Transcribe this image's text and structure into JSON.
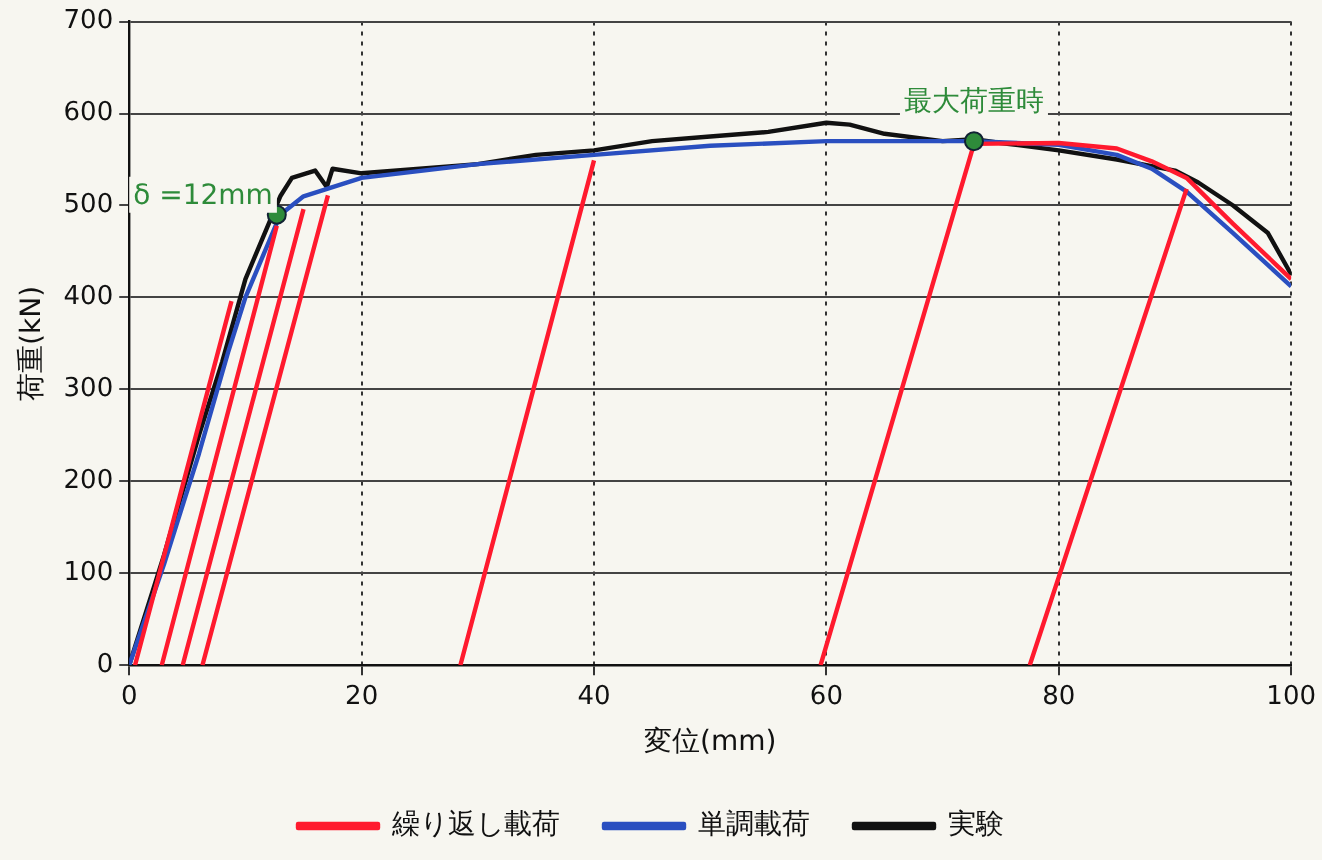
{
  "chart_data": {
    "type": "line",
    "xlabel": "変位(mm)",
    "ylabel": "荷重(kN)",
    "xlim": [
      0,
      100
    ],
    "xticks": [
      0,
      20,
      40,
      60,
      80,
      100
    ],
    "ylim": [
      0,
      700
    ],
    "yticks": [
      0,
      100,
      200,
      300,
      400,
      500,
      600,
      700
    ],
    "grid": true,
    "legend": "bottom",
    "marker": "none",
    "line_style": "solid",
    "series": [
      {
        "name": "繰り返し載荷",
        "color": "#ff1a2e",
        "x": [
          0.5,
          8.8,
          null,
          2.8,
          12.7,
          null,
          4.6,
          15,
          null,
          6.3,
          17.1,
          null,
          28.5,
          40,
          null,
          59.5,
          72.7,
          80,
          85,
          88,
          91,
          95,
          100,
          null,
          77.5,
          91
        ],
        "values": [
          0,
          396,
          null,
          0,
          478,
          null,
          0,
          496,
          null,
          0,
          511,
          null,
          0,
          549,
          null,
          0,
          567,
          568,
          562,
          548,
          530,
          480,
          420,
          null,
          0,
          518
        ]
      },
      {
        "name": "単調載荷",
        "color": "#2a4fc0",
        "x": [
          0,
          3,
          6,
          8.5,
          10,
          12,
          13,
          15,
          20,
          30,
          40,
          50,
          60,
          72.7,
          80,
          85,
          88,
          91,
          95,
          100
        ],
        "values": [
          0,
          110,
          230,
          340,
          400,
          460,
          490,
          510,
          530,
          545,
          555,
          565,
          570,
          570,
          566,
          555,
          540,
          515,
          470,
          412
        ]
      },
      {
        "name": "実験",
        "color": "#111111",
        "x": [
          0,
          3,
          6,
          8,
          10,
          12,
          13,
          14,
          16,
          17,
          17.5,
          20,
          25,
          30,
          35,
          40,
          45,
          50,
          55,
          60,
          62,
          65,
          70,
          72.7,
          75,
          80,
          85,
          90,
          92,
          95,
          98,
          100
        ],
        "values": [
          0,
          120,
          250,
          330,
          420,
          480,
          510,
          530,
          538,
          520,
          540,
          535,
          540,
          545,
          555,
          560,
          570,
          575,
          580,
          590,
          588,
          578,
          570,
          572,
          568,
          560,
          550,
          538,
          525,
          500,
          470,
          425
        ]
      }
    ],
    "annotations": [
      {
        "text": "δ =12mm",
        "x": 12.7,
        "y": 490
      },
      {
        "text": "最大荷重時",
        "x": 72.7,
        "y": 570
      }
    ]
  }
}
